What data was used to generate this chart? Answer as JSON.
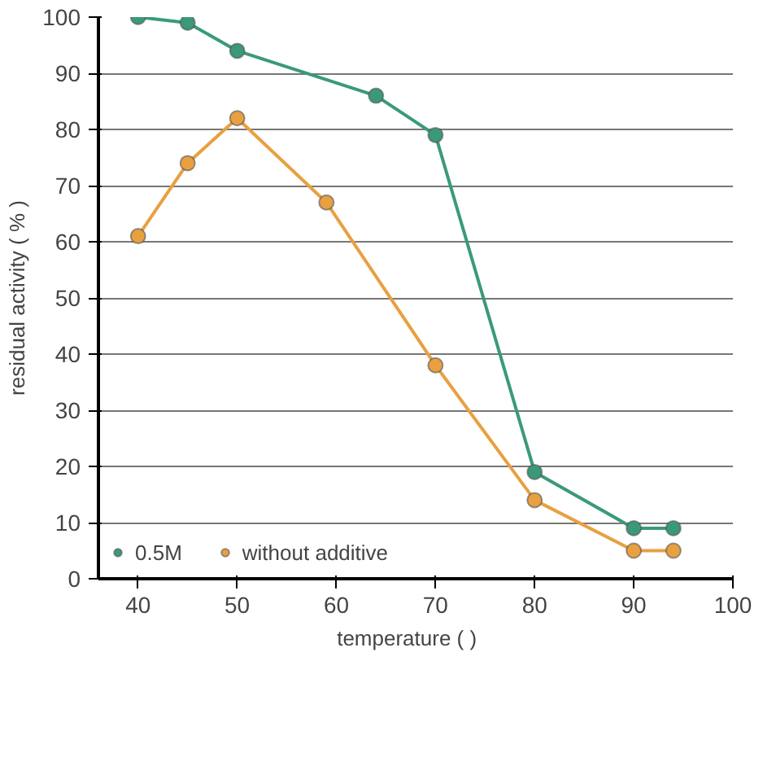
{
  "chart_data": {
    "type": "line",
    "xlabel": "temperature (    )",
    "ylabel": "residual activity ( % )",
    "xlim": [
      36,
      100
    ],
    "xticks": [
      40,
      50,
      60,
      70,
      80,
      90,
      100
    ],
    "ylim": [
      0,
      100
    ],
    "yticks": [
      0,
      10,
      20,
      30,
      40,
      50,
      60,
      70,
      80,
      90,
      100
    ],
    "grid": "y",
    "legend": "bottom left",
    "marker": "circle",
    "line_style": "solid",
    "series": [
      {
        "name": "0.5M",
        "color": "#3a9a78",
        "x": [
          40,
          45,
          50,
          64,
          70,
          80,
          90,
          94
        ],
        "values": [
          100,
          99,
          94,
          86,
          79,
          19,
          9,
          9
        ]
      },
      {
        "name": "without additive",
        "color": "#e8a040",
        "x": [
          40,
          45,
          50,
          59,
          70,
          80,
          90,
          94
        ],
        "values": [
          61,
          74,
          82,
          67,
          38,
          14,
          5,
          5
        ]
      }
    ]
  }
}
